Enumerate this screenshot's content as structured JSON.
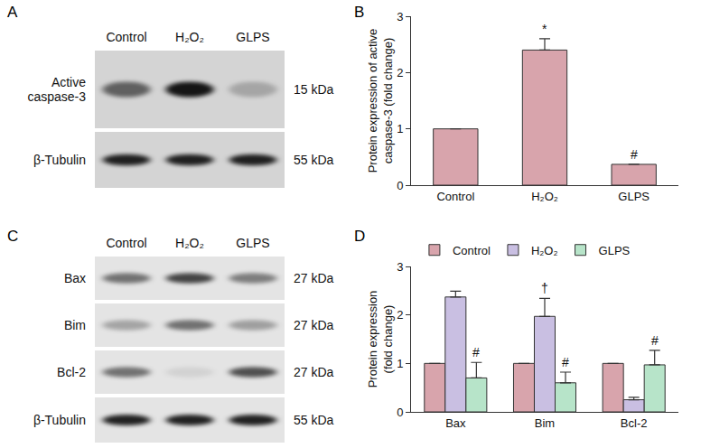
{
  "panel_labels": [
    "A",
    "B",
    "C",
    "D"
  ],
  "blots": [
    {
      "lanes": [
        "Control",
        "H₂O₂",
        "GLPS"
      ],
      "rows": [
        {
          "label": [
            "Active",
            "caspase-3"
          ],
          "size": "15 kDa"
        },
        {
          "label": [
            "β-Tubulin"
          ],
          "size": "55 kDa"
        }
      ]
    },
    {
      "lanes": [
        "Control",
        "H₂O₂",
        "GLPS"
      ],
      "rows": [
        {
          "label": [
            "Bax"
          ],
          "size": "27 kDa"
        },
        {
          "label": [
            "Bim"
          ],
          "size": "27 kDa"
        },
        {
          "label": [
            "Bcl-2"
          ],
          "size": "27 kDa"
        },
        {
          "label": [
            "β-Tubulin"
          ],
          "size": "55 kDa"
        }
      ]
    }
  ],
  "chart_data": [
    {
      "type": "bar",
      "categories": [
        "Control",
        "H₂O₂",
        "GLPS"
      ],
      "values": [
        1,
        2.4,
        0.37
      ],
      "errors": [
        0,
        0.2,
        0
      ],
      "color": "#d8a4ac",
      "ylabel": [
        "Protein expression of active",
        "caspase-3 (fold change)"
      ],
      "ylim": [
        0,
        3
      ],
      "yticks": [
        0,
        1,
        2,
        3
      ],
      "grid": false,
      "annotations": [
        {
          "category": "H₂O₂",
          "text": "*"
        },
        {
          "category": "GLPS",
          "text": "#"
        }
      ]
    },
    {
      "type": "bar",
      "categories": [
        "Bax",
        "Bim",
        "Bcl-2"
      ],
      "series": [
        {
          "name": "Control",
          "color": "#d8a4ac",
          "values": [
            1,
            1,
            1
          ],
          "errors": [
            0,
            0,
            0
          ]
        },
        {
          "name": "H₂O₂",
          "color": "#c9bfe2",
          "values": [
            2.37,
            1.97,
            0.25
          ],
          "errors": [
            0.12,
            0.37,
            0.05
          ]
        },
        {
          "name": "GLPS",
          "color": "#b7e4c9",
          "values": [
            0.7,
            0.6,
            0.97
          ],
          "errors": [
            0.32,
            0.22,
            0.3
          ]
        }
      ],
      "ylabel": [
        "Protein expression",
        "(fold change)"
      ],
      "ylim": [
        0,
        3
      ],
      "yticks": [
        0,
        1,
        2,
        3
      ],
      "grid": false,
      "legend": "top",
      "annotations": [
        {
          "category": "Bim",
          "series": "H₂O₂",
          "text": "†"
        },
        {
          "category": "Bax",
          "series": "GLPS",
          "text": "#"
        },
        {
          "category": "Bim",
          "series": "GLPS",
          "text": "#"
        },
        {
          "category": "Bcl-2",
          "series": "GLPS",
          "text": "#"
        }
      ]
    }
  ]
}
